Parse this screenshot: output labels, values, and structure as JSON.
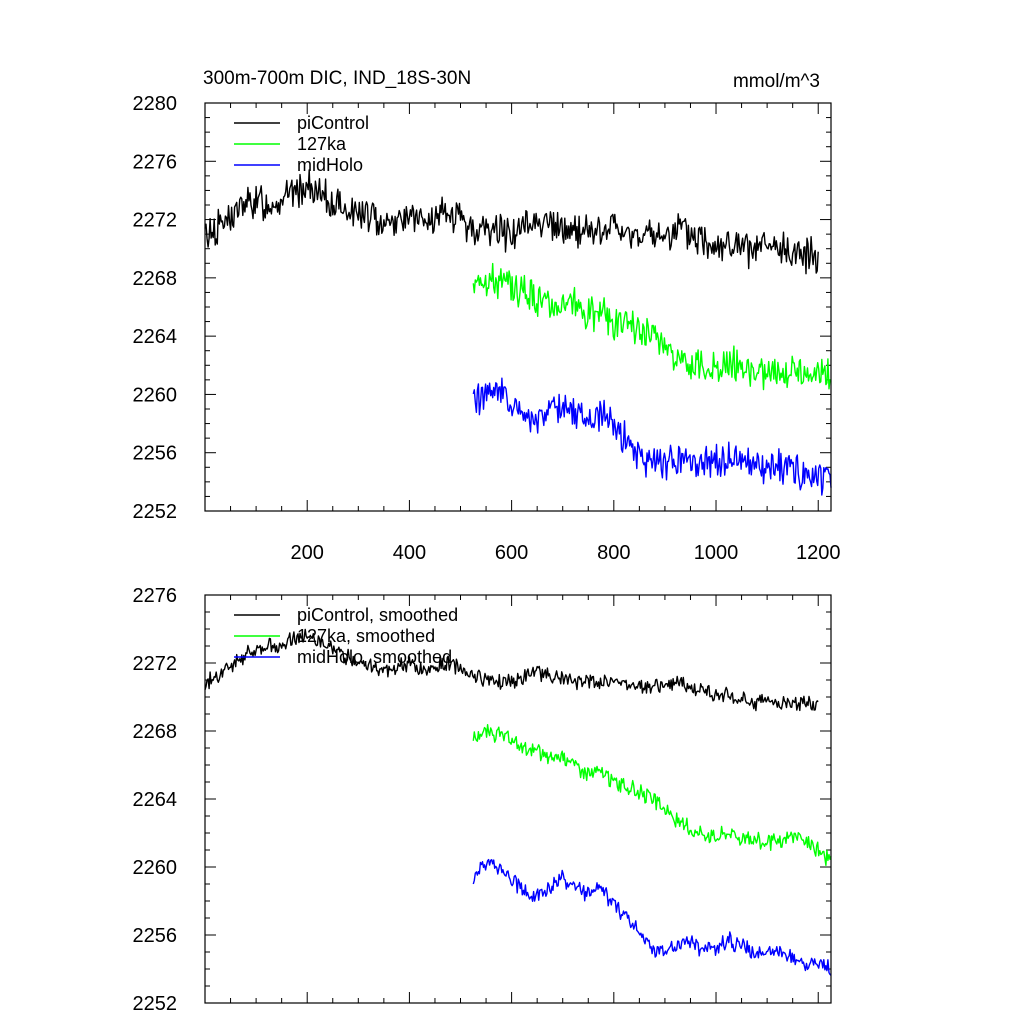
{
  "chart_data": [
    {
      "type": "line",
      "title_left": "300m-700m DIC, IND_18S-30N",
      "title_right": "mmol/m^3",
      "xlabel": "",
      "ylabel": "",
      "xlim": [
        0,
        1225
      ],
      "ylim": [
        2252,
        2280
      ],
      "x_ticks": [
        200,
        400,
        600,
        800,
        1000,
        1200
      ],
      "x_tick_labels": [
        "200",
        "400",
        "600",
        "800",
        "1000",
        "1200"
      ],
      "y_ticks": [
        2252,
        2256,
        2260,
        2264,
        2268,
        2272,
        2276,
        2280
      ],
      "y_tick_labels": [
        "2252",
        "2256",
        "2260",
        "2264",
        "2268",
        "2272",
        "2276",
        "2280"
      ],
      "grid": false,
      "legend_position": "top-left",
      "series": [
        {
          "name": "piControl",
          "color": "#000000",
          "x_start": 0,
          "x_end": 1200,
          "x_step": 25,
          "values": [
            2270.9,
            2271.5,
            2272.2,
            2272.9,
            2273.3,
            2273.1,
            2273.5,
            2273.9,
            2274.2,
            2273.6,
            2273.1,
            2272.7,
            2272.4,
            2272.1,
            2271.9,
            2272.0,
            2272.3,
            2271.7,
            2271.8,
            2272.5,
            2271.9,
            2271.4,
            2271.2,
            2271.3,
            2271.0,
            2271.4,
            2272.1,
            2271.6,
            2271.2,
            2271.1,
            2271.4,
            2271.0,
            2271.6,
            2270.8,
            2271.1,
            2270.7,
            2270.9,
            2271.3,
            2270.8,
            2270.6,
            2270.4,
            2270.2,
            2270.0,
            2269.8,
            2270.1,
            2269.7,
            2269.9,
            2269.5,
            2269.7
          ]
        },
        {
          "name": "127ka",
          "color": "#00ff00",
          "x_start": 525,
          "x_end": 1225,
          "x_step": 25,
          "values": [
            2267.7,
            2268.0,
            2267.8,
            2267.4,
            2267.0,
            2266.7,
            2266.2,
            2266.6,
            2266.0,
            2265.4,
            2265.6,
            2264.9,
            2264.6,
            2264.3,
            2263.9,
            2263.3,
            2262.6,
            2262.2,
            2262.0,
            2261.8,
            2262.3,
            2261.7,
            2261.6,
            2261.5,
            2261.4,
            2262.0,
            2261.6,
            2261.1,
            2261.3,
            2260.7
          ]
        },
        {
          "name": "midHolo",
          "color": "#0000ff",
          "x_start": 525,
          "x_end": 1225,
          "x_step": 25,
          "values": [
            2259.6,
            2260.3,
            2260.0,
            2259.3,
            2258.5,
            2258.3,
            2258.9,
            2259.4,
            2258.6,
            2258.4,
            2258.8,
            2257.6,
            2256.9,
            2256.1,
            2255.2,
            2255.0,
            2255.4,
            2255.6,
            2255.0,
            2255.3,
            2255.8,
            2255.4,
            2255.0,
            2254.8,
            2255.3,
            2254.7,
            2254.4,
            2254.6,
            2254.1,
            2254.3
          ]
        }
      ]
    },
    {
      "type": "line",
      "title_left": "",
      "title_right": "",
      "xlabel": "",
      "ylabel": "",
      "xlim": [
        0,
        1225
      ],
      "ylim": [
        2252,
        2276
      ],
      "x_ticks": [
        200,
        400,
        600,
        800,
        1000,
        1200
      ],
      "x_tick_labels": [],
      "y_ticks": [
        2252,
        2256,
        2260,
        2264,
        2268,
        2272,
        2276
      ],
      "y_tick_labels": [
        "2252",
        "2256",
        "2260",
        "2264",
        "2268",
        "2272",
        "2276"
      ],
      "grid": false,
      "legend_position": "top-left",
      "series": [
        {
          "name": "piControl, smoothed",
          "color": "#000000",
          "x_start": 0,
          "x_end": 1200,
          "x_step": 25,
          "values": [
            2270.8,
            2271.3,
            2271.8,
            2272.4,
            2272.7,
            2272.9,
            2273.2,
            2273.5,
            2273.6,
            2273.2,
            2272.8,
            2272.4,
            2272.1,
            2271.8,
            2271.6,
            2271.7,
            2271.9,
            2271.6,
            2271.7,
            2272.0,
            2271.7,
            2271.3,
            2271.1,
            2271.0,
            2270.9,
            2271.1,
            2271.5,
            2271.3,
            2271.0,
            2270.9,
            2271.0,
            2270.8,
            2271.1,
            2270.7,
            2270.8,
            2270.6,
            2270.7,
            2270.8,
            2270.5,
            2270.4,
            2270.2,
            2270.0,
            2269.8,
            2269.7,
            2269.9,
            2269.6,
            2269.8,
            2269.6,
            2269.6
          ]
        },
        {
          "name": "127ka, smoothed",
          "color": "#00ff00",
          "x_start": 525,
          "x_end": 1225,
          "x_step": 25,
          "values": [
            2267.6,
            2267.9,
            2267.8,
            2267.4,
            2267.0,
            2266.8,
            2266.4,
            2266.6,
            2266.0,
            2265.5,
            2265.6,
            2265.0,
            2264.7,
            2264.4,
            2264.0,
            2263.4,
            2262.6,
            2262.2,
            2262.0,
            2261.8,
            2262.1,
            2261.7,
            2261.6,
            2261.4,
            2261.4,
            2261.9,
            2261.5,
            2261.0,
            2260.4,
            2260.5
          ]
        },
        {
          "name": "midHolo, smoothed",
          "color": "#0000ff",
          "x_start": 525,
          "x_end": 1225,
          "x_step": 25,
          "values": [
            2259.4,
            2260.2,
            2260.1,
            2259.3,
            2258.6,
            2258.3,
            2258.8,
            2259.3,
            2258.7,
            2258.4,
            2258.7,
            2257.8,
            2257.0,
            2256.2,
            2255.3,
            2255.0,
            2255.4,
            2255.6,
            2255.1,
            2255.3,
            2255.7,
            2255.3,
            2255.0,
            2254.8,
            2255.2,
            2254.7,
            2254.4,
            2254.5,
            2254.1,
            2254.2
          ]
        }
      ]
    }
  ]
}
